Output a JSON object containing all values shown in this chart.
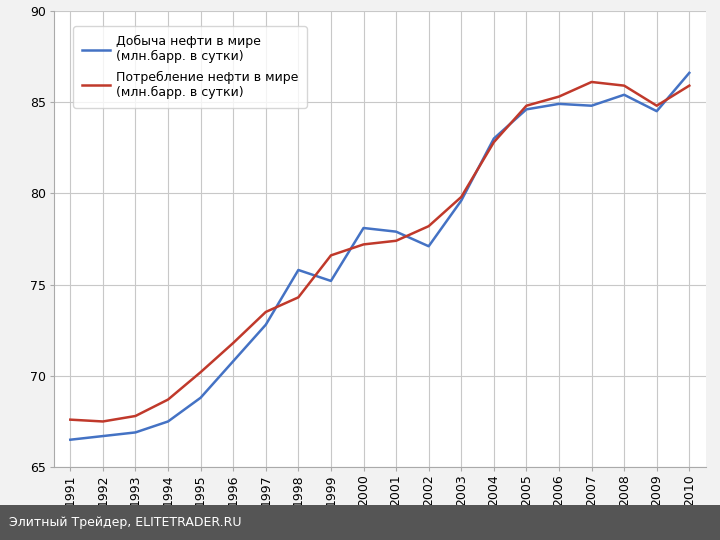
{
  "years": [
    1991,
    1992,
    1993,
    1994,
    1995,
    1996,
    1997,
    1998,
    1999,
    2000,
    2001,
    2002,
    2003,
    2004,
    2005,
    2006,
    2007,
    2008,
    2009,
    2010
  ],
  "production": [
    66.5,
    66.7,
    66.9,
    67.5,
    68.8,
    70.8,
    72.8,
    75.8,
    75.2,
    78.1,
    77.9,
    77.1,
    79.6,
    83.0,
    84.6,
    84.9,
    84.8,
    85.4,
    84.5,
    86.6
  ],
  "consumption": [
    67.6,
    67.5,
    67.8,
    68.7,
    70.2,
    71.8,
    73.5,
    74.3,
    76.6,
    77.2,
    77.4,
    78.2,
    79.8,
    82.8,
    84.8,
    85.3,
    86.1,
    85.9,
    84.8,
    85.9
  ],
  "prod_color": "#4472C4",
  "cons_color": "#C0392B",
  "ylim": [
    65,
    90
  ],
  "yticks": [
    65,
    70,
    75,
    80,
    85,
    90
  ],
  "grid_color": "#C8C8C8",
  "bg_color": "#F0F0F0",
  "plot_bg_color": "#FFFFFF",
  "outer_bg_color": "#F2F2F2",
  "legend_label_prod": "Добыча нефти в мире\n(млн.барр. в сутки)",
  "legend_label_cons": "Потребление нефти в мире\n(млн.барр. в сутки)",
  "footer_text": "Элитный Трейдер, ELITETRADER.RU",
  "footer_bg": "#555555",
  "footer_text_color": "#FFFFFF",
  "line_width": 1.8,
  "font_size_ticks": 9,
  "font_size_legend": 9,
  "font_size_footer": 9
}
